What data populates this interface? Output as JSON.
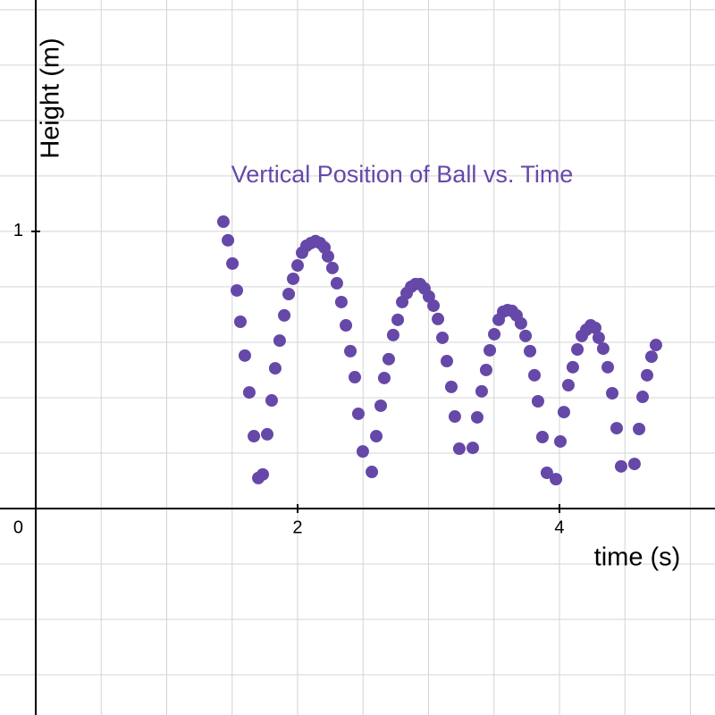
{
  "chart_data": {
    "type": "scatter",
    "title": "Vertical Position of Ball vs. Time",
    "x_label": "time (s)",
    "y_label": "Height (m)",
    "xlim": [
      -0.273,
      5.188
    ],
    "ylim": [
      -0.745,
      1.835
    ],
    "xticks": [
      2,
      4
    ],
    "yticks": [
      1
    ],
    "origin_label": 0,
    "xgrid": [
      -0.5,
      0,
      0.5,
      1,
      1.5,
      2,
      2.5,
      3,
      3.5,
      4,
      4.5,
      5
    ],
    "ygrid": [
      -0.6,
      -0.4,
      -0.2,
      0,
      0.2,
      0.4,
      0.6,
      0.8,
      1,
      1.2,
      1.4,
      1.6,
      1.8
    ],
    "grid": true,
    "series": [
      {
        "color": "#6548a8",
        "x": [
          1.433,
          1.468,
          1.502,
          1.536,
          1.563,
          1.597,
          1.631,
          1.666,
          1.7,
          1.734,
          1.768,
          1.802,
          1.829,
          1.863,
          1.898,
          1.932,
          1.966,
          2.0,
          2.034,
          2.068,
          2.102,
          2.137,
          2.171,
          2.205,
          2.232,
          2.266,
          2.3,
          2.334,
          2.369,
          2.403,
          2.437,
          2.464,
          2.498,
          2.567,
          2.601,
          2.635,
          2.662,
          2.696,
          2.73,
          2.765,
          2.799,
          2.833,
          2.867,
          2.901,
          2.935,
          2.969,
          3.003,
          3.038,
          3.072,
          3.106,
          3.14,
          3.174,
          3.201,
          3.235,
          3.338,
          3.372,
          3.406,
          3.44,
          3.468,
          3.502,
          3.536,
          3.57,
          3.604,
          3.638,
          3.672,
          3.706,
          3.741,
          3.775,
          3.809,
          3.836,
          3.87,
          3.904,
          3.973,
          4.007,
          4.034,
          4.068,
          4.102,
          4.137,
          4.171,
          4.205,
          4.239,
          4.273,
          4.3,
          4.334,
          4.369,
          4.403,
          4.437,
          4.471,
          4.573,
          4.608,
          4.635,
          4.669,
          4.703,
          4.737
        ],
        "values": [
          1.035,
          0.968,
          0.884,
          0.787,
          0.674,
          0.552,
          0.419,
          0.261,
          0.11,
          0.123,
          0.268,
          0.39,
          0.506,
          0.606,
          0.697,
          0.774,
          0.829,
          0.877,
          0.923,
          0.948,
          0.958,
          0.965,
          0.958,
          0.942,
          0.91,
          0.868,
          0.813,
          0.745,
          0.661,
          0.568,
          0.474,
          0.342,
          0.206,
          0.132,
          0.261,
          0.371,
          0.471,
          0.539,
          0.626,
          0.681,
          0.745,
          0.777,
          0.8,
          0.81,
          0.81,
          0.794,
          0.765,
          0.732,
          0.684,
          0.616,
          0.532,
          0.439,
          0.332,
          0.216,
          0.219,
          0.329,
          0.423,
          0.5,
          0.571,
          0.629,
          0.681,
          0.71,
          0.716,
          0.713,
          0.697,
          0.668,
          0.623,
          0.568,
          0.481,
          0.387,
          0.258,
          0.129,
          0.106,
          0.242,
          0.348,
          0.445,
          0.51,
          0.574,
          0.623,
          0.645,
          0.661,
          0.652,
          0.616,
          0.577,
          0.51,
          0.416,
          0.29,
          0.152,
          0.161,
          0.287,
          0.403,
          0.481,
          0.548,
          0.59
        ]
      }
    ]
  }
}
